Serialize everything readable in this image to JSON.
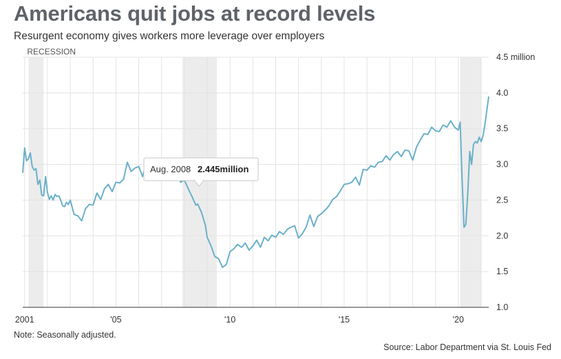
{
  "header": {
    "title": "Americans quit jobs at record levels",
    "subtitle": "Resurgent economy gives workers more leverage over employers"
  },
  "footer": {
    "note": "Note: Seasonally adjusted.",
    "source": "Source: Labor Department via St. Louis Fed"
  },
  "chart_data": {
    "type": "line",
    "title": "Americans quit jobs at record levels",
    "subtitle": "Resurgent economy gives workers more leverage over employers",
    "xlabel": "",
    "ylabel": "",
    "xlim": [
      2000.917,
      2021.333
    ],
    "ylim": [
      1.0,
      4.5
    ],
    "grid": true,
    "x_ticks": [
      {
        "value": 2001,
        "label": "2001"
      },
      {
        "value": 2005,
        "label": "'05"
      },
      {
        "value": 2010,
        "label": "'10"
      },
      {
        "value": 2015,
        "label": "'15"
      },
      {
        "value": 2020,
        "label": "'20"
      }
    ],
    "y_ticks": [
      {
        "value": 4.5,
        "label": "4.5 million"
      },
      {
        "value": 4.0,
        "label": "4.0"
      },
      {
        "value": 3.5,
        "label": "3.5"
      },
      {
        "value": 3.0,
        "label": "3.0"
      },
      {
        "value": 2.5,
        "label": "2.5"
      },
      {
        "value": 2.0,
        "label": "2.0"
      },
      {
        "value": 1.5,
        "label": "1.5"
      },
      {
        "value": 1.0,
        "label": "1.0"
      }
    ],
    "recession_label": "RECESSION",
    "recessions": [
      {
        "start": 2001.17,
        "end": 2001.83
      },
      {
        "start": 2007.92,
        "end": 2009.42
      },
      {
        "start": 2020.08,
        "end": 2021.0
      }
    ],
    "colors": {
      "line": "#6ab0c9",
      "recession": "#ececec",
      "grid": "#e3e3e3",
      "axis": "#333333"
    },
    "tooltip": {
      "date": "Aug. 2008",
      "value": "2.445million",
      "x": 2008.583,
      "y": 2.445
    },
    "series": [
      {
        "x": [
          2000.917,
          2001.0,
          2001.083,
          2001.167,
          2001.25,
          2001.333,
          2001.417,
          2001.5,
          2001.583,
          2001.667,
          2001.75,
          2001.833,
          2001.917,
          2002.0,
          2002.083,
          2002.167,
          2002.25,
          2002.333,
          2002.417,
          2002.5,
          2002.583,
          2002.667,
          2002.75,
          2002.833,
          2002.917,
          2003.0,
          2003.167,
          2003.333,
          2003.5,
          2003.667,
          2003.833,
          2004.0,
          2004.167,
          2004.333,
          2004.5,
          2004.667,
          2004.833,
          2005.0,
          2005.167,
          2005.333,
          2005.5,
          2005.667,
          2005.833,
          2006.0,
          2006.167,
          2006.333,
          2006.5,
          2006.667,
          2006.833,
          2007.0,
          2007.167,
          2007.333,
          2007.5,
          2007.667,
          2007.833,
          2008.0,
          2008.167,
          2008.333,
          2008.5,
          2008.583,
          2008.75,
          2008.917,
          2009.0,
          2009.167,
          2009.333,
          2009.5,
          2009.667,
          2009.833,
          2010.0,
          2010.167,
          2010.333,
          2010.5,
          2010.667,
          2010.833,
          2011.0,
          2011.167,
          2011.333,
          2011.5,
          2011.667,
          2011.833,
          2012.0,
          2012.167,
          2012.333,
          2012.5,
          2012.667,
          2012.833,
          2013.0,
          2013.167,
          2013.333,
          2013.5,
          2013.667,
          2013.833,
          2014.0,
          2014.167,
          2014.333,
          2014.5,
          2014.667,
          2014.833,
          2015.0,
          2015.167,
          2015.333,
          2015.5,
          2015.667,
          2015.833,
          2016.0,
          2016.167,
          2016.333,
          2016.5,
          2016.667,
          2016.833,
          2017.0,
          2017.167,
          2017.333,
          2017.5,
          2017.667,
          2017.833,
          2018.0,
          2018.167,
          2018.333,
          2018.5,
          2018.667,
          2018.833,
          2019.0,
          2019.167,
          2019.333,
          2019.5,
          2019.667,
          2019.833,
          2020.0,
          2020.083,
          2020.167,
          2020.25,
          2020.333,
          2020.417,
          2020.5,
          2020.583,
          2020.667,
          2020.75,
          2020.833,
          2020.917,
          2021.0,
          2021.083,
          2021.167,
          2021.25,
          2021.333
        ],
        "values": [
          2.88,
          3.23,
          3.05,
          3.08,
          3.16,
          2.97,
          2.92,
          2.94,
          2.72,
          2.78,
          2.57,
          2.56,
          2.83,
          2.61,
          2.51,
          2.56,
          2.5,
          2.58,
          2.55,
          2.56,
          2.5,
          2.42,
          2.41,
          2.47,
          2.44,
          2.5,
          2.3,
          2.28,
          2.21,
          2.38,
          2.44,
          2.43,
          2.6,
          2.51,
          2.66,
          2.72,
          2.62,
          2.75,
          2.74,
          2.79,
          3.03,
          2.9,
          2.95,
          2.97,
          2.83,
          3.03,
          3.04,
          2.92,
          3.03,
          3.0,
          2.92,
          3.0,
          2.96,
          2.99,
          2.75,
          2.78,
          2.66,
          2.55,
          2.43,
          2.445,
          2.33,
          2.15,
          1.98,
          1.86,
          1.71,
          1.68,
          1.56,
          1.6,
          1.78,
          1.82,
          1.88,
          1.84,
          1.9,
          1.8,
          1.86,
          1.94,
          1.84,
          1.98,
          1.93,
          2.01,
          1.98,
          2.06,
          2.02,
          2.09,
          2.12,
          2.14,
          1.97,
          2.03,
          2.12,
          2.29,
          2.13,
          2.27,
          2.31,
          2.36,
          2.42,
          2.51,
          2.55,
          2.63,
          2.72,
          2.73,
          2.75,
          2.82,
          2.71,
          2.93,
          2.92,
          2.98,
          2.96,
          3.03,
          3.04,
          3.12,
          3.06,
          3.14,
          3.18,
          3.11,
          3.2,
          3.19,
          3.06,
          3.24,
          3.34,
          3.43,
          3.42,
          3.52,
          3.47,
          3.46,
          3.55,
          3.52,
          3.61,
          3.52,
          3.48,
          3.59,
          2.8,
          2.12,
          2.16,
          2.6,
          3.18,
          3.0,
          3.28,
          3.32,
          3.3,
          3.38,
          3.32,
          3.4,
          3.56,
          3.75,
          3.95
        ]
      }
    ]
  }
}
